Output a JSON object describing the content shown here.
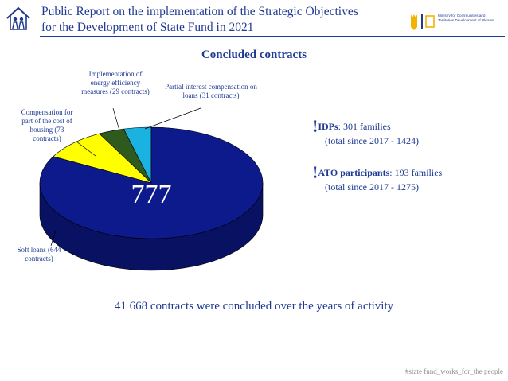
{
  "header": {
    "title_line1": "Public Report on the implementation of the Strategic Objectives",
    "title_line2": "for the Development of State Fund in 2021",
    "ministry_line1": "Ministry for Communities and",
    "ministry_line2": "Territories Development of Ukraine"
  },
  "colors": {
    "accent": "#1f3a93",
    "soft_loans": "#0d1a8c",
    "compensation_housing": "#ffff00",
    "energy_efficiency": "#2f5a1e",
    "partial_interest": "#1ab2e0"
  },
  "chart_data": {
    "type": "pie",
    "title": "Concluded contracts",
    "total_label": "777",
    "slices": [
      {
        "label": "Soft loans (644 contracts)",
        "value": 644
      },
      {
        "label": "Compensation for part of the cost of housing (73 contracts)",
        "value": 73
      },
      {
        "label": "Implementation of energy efficiency measures (29 contracts)",
        "value": 29
      },
      {
        "label": "Partial interest compensation on loans (31 contracts)",
        "value": 31
      }
    ]
  },
  "stats": {
    "idp_mark": "!",
    "idp_head": "IDPs",
    "idp_text": ": 301 families",
    "idp_sub": "(total since 2017 - 1424)",
    "ato_mark": "!",
    "ato_head": "ATO participants",
    "ato_text": ": 193 families",
    "ato_sub": "(total since 2017 - 1275)"
  },
  "summary": "41 668 contracts were concluded over the years of activity",
  "hashtag": "#state fund_works_for_the people"
}
